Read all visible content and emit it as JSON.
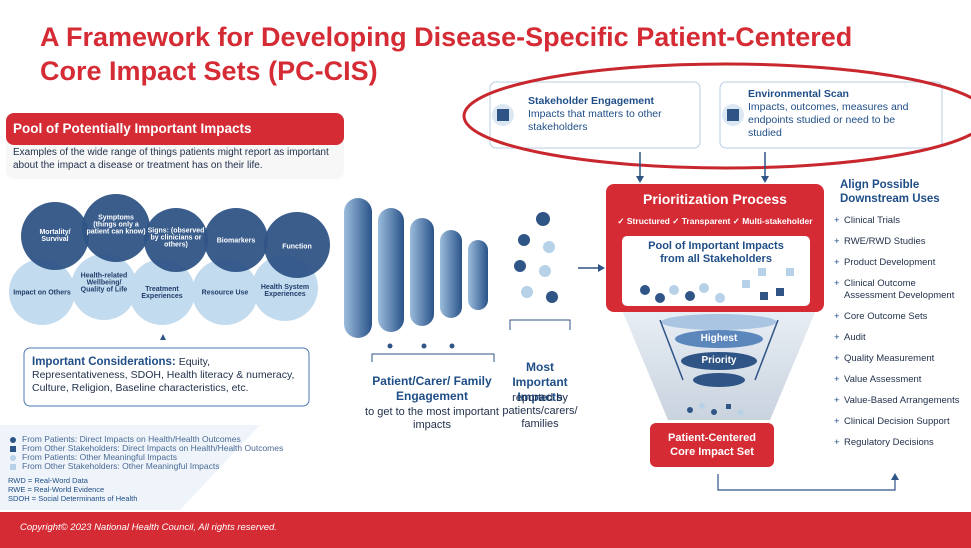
{
  "title": [
    "A Framework for Developing Disease-Specific Patient-Centered",
    "Core Impact Sets (PC-CIS)"
  ],
  "pool": {
    "title": "Pool of Potentially Important Impacts",
    "description": "Examples of the wide range of things patients might report as important about the impact a disease or treatment has on their life.",
    "circles_dark": [
      "Mortality/ Survival",
      "Symptoms (things only a patient can know)",
      "Signs: (observed by clinicians or others)",
      "Biomarkers",
      "Function"
    ],
    "circles_light": [
      "Impact on Others",
      "Health-related Wellbeing/ Quality of Life",
      "Treatment Experiences",
      "Resource Use",
      "Health System Experiences"
    ]
  },
  "considerations": {
    "label": "Important Considerations:",
    "text": "Equity, Representativeness, SDOH, Health literacy & numeracy, Culture, Religion, Baseline characteristics, etc."
  },
  "legend": [
    "From Patients: Direct Impacts on Health/Health Outcomes",
    "From Other Stakeholders: Direct Impacts on Health/Health Outcomes",
    "From Patients: Other Meaningful Impacts",
    "From Other Stakeholders: Other Meaningful Impacts"
  ],
  "abbreviations": [
    "RWD = Real-Word Data",
    "RWE = Real-World Evidence",
    "SDOH = Social Determinants of Health"
  ],
  "engagement": {
    "title": "Patient/Carer/ Family Engagement",
    "text": "to get to the most important impacts"
  },
  "most_important": {
    "title": "Most Important Impacts",
    "text": "reported by patients/carers/ families"
  },
  "stakeholder": {
    "title": "Stakeholder Engagement",
    "text": "Impacts that matters to other stakeholders"
  },
  "environmental": {
    "title": "Environmental Scan",
    "text": "Impacts, outcomes, measures and endpoints studied or need to be studied"
  },
  "prioritization": {
    "title": "Prioritization Process",
    "criteria": "✓ Structured ✓ Transparent ✓ Multi-stakeholder",
    "pool": "Pool of Important Impacts from all Stakeholders",
    "funnel": [
      "Highest",
      "Priority"
    ],
    "result": "Patient-Centered Core Impact Set"
  },
  "downstream": {
    "title": "Align Possible Downstream Uses",
    "items": [
      "Clinical Trials",
      "RWE/RWD Studies",
      "Product Development",
      "Clinical Outcome Assessment Development",
      "Core Outcome Sets",
      "Audit",
      "Quality Measurement",
      "Value Assessment",
      "Value-Based Arrangements",
      "Clinical Decision Support",
      "Regulatory Decisions"
    ]
  },
  "footer": "Copyright© 2023 National Health Council, All rights reserved."
}
